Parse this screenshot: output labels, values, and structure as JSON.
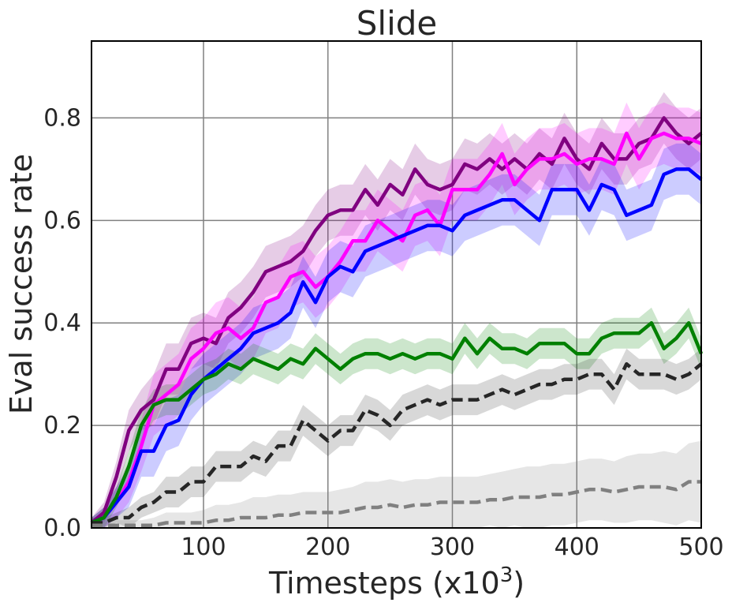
{
  "chart_data": {
    "type": "line",
    "title": "Slide",
    "xlabel": "Timesteps (x10",
    "xlabel_sup": "3",
    "xlabel_close": ")",
    "ylabel": "Eval success rate",
    "xlim": [
      10,
      500
    ],
    "ylim": [
      0,
      0.95
    ],
    "xticks": [
      100,
      200,
      300,
      400,
      500
    ],
    "xtick_labels": [
      "100",
      "200",
      "300",
      "400",
      "500"
    ],
    "yticks": [
      0.0,
      0.2,
      0.4,
      0.6,
      0.8
    ],
    "ytick_labels": [
      "0.0",
      "0.2",
      "0.4",
      "0.6",
      "0.8"
    ],
    "grid": true,
    "x": [
      10,
      20,
      30,
      40,
      50,
      60,
      70,
      80,
      90,
      100,
      110,
      120,
      130,
      140,
      150,
      160,
      170,
      180,
      190,
      200,
      210,
      220,
      230,
      240,
      250,
      260,
      270,
      280,
      290,
      300,
      310,
      320,
      330,
      340,
      350,
      360,
      370,
      380,
      390,
      400,
      410,
      420,
      430,
      440,
      450,
      460,
      470,
      480,
      490,
      500
    ],
    "series": [
      {
        "color": "#800080",
        "dash": "solid",
        "band_opacity": 0.2,
        "mean": [
          0.01,
          0.03,
          0.1,
          0.19,
          0.23,
          0.25,
          0.31,
          0.31,
          0.36,
          0.37,
          0.36,
          0.41,
          0.43,
          0.46,
          0.5,
          0.51,
          0.52,
          0.54,
          0.58,
          0.61,
          0.62,
          0.62,
          0.66,
          0.63,
          0.67,
          0.65,
          0.7,
          0.67,
          0.66,
          0.67,
          0.71,
          0.7,
          0.72,
          0.7,
          0.72,
          0.7,
          0.73,
          0.71,
          0.76,
          0.72,
          0.7,
          0.75,
          0.72,
          0.72,
          0.75,
          0.76,
          0.8,
          0.77,
          0.75,
          0.77
        ],
        "spread": [
          0.01,
          0.02,
          0.03,
          0.04,
          0.04,
          0.05,
          0.05,
          0.05,
          0.05,
          0.05,
          0.05,
          0.05,
          0.05,
          0.05,
          0.05,
          0.05,
          0.05,
          0.05,
          0.05,
          0.05,
          0.05,
          0.05,
          0.05,
          0.05,
          0.05,
          0.05,
          0.05,
          0.05,
          0.05,
          0.05,
          0.05,
          0.05,
          0.05,
          0.05,
          0.05,
          0.05,
          0.05,
          0.05,
          0.05,
          0.05,
          0.05,
          0.05,
          0.05,
          0.05,
          0.05,
          0.05,
          0.05,
          0.05,
          0.05,
          0.05
        ]
      },
      {
        "color": "#ff00ff",
        "dash": "solid",
        "band_opacity": 0.2,
        "mean": [
          0.01,
          0.02,
          0.05,
          0.09,
          0.16,
          0.24,
          0.26,
          0.28,
          0.33,
          0.35,
          0.38,
          0.39,
          0.37,
          0.39,
          0.44,
          0.45,
          0.49,
          0.5,
          0.47,
          0.49,
          0.52,
          0.56,
          0.56,
          0.6,
          0.58,
          0.56,
          0.61,
          0.62,
          0.59,
          0.66,
          0.66,
          0.66,
          0.69,
          0.73,
          0.67,
          0.7,
          0.72,
          0.72,
          0.73,
          0.71,
          0.72,
          0.72,
          0.71,
          0.77,
          0.72,
          0.76,
          0.77,
          0.76,
          0.76,
          0.75
        ],
        "spread": [
          0.01,
          0.02,
          0.03,
          0.04,
          0.05,
          0.06,
          0.06,
          0.06,
          0.06,
          0.06,
          0.06,
          0.06,
          0.06,
          0.06,
          0.06,
          0.06,
          0.06,
          0.06,
          0.06,
          0.06,
          0.06,
          0.06,
          0.06,
          0.06,
          0.06,
          0.06,
          0.06,
          0.06,
          0.06,
          0.06,
          0.06,
          0.06,
          0.06,
          0.06,
          0.06,
          0.06,
          0.06,
          0.06,
          0.06,
          0.06,
          0.06,
          0.06,
          0.06,
          0.06,
          0.06,
          0.06,
          0.06,
          0.06,
          0.06,
          0.06
        ]
      },
      {
        "color": "#0000ff",
        "dash": "solid",
        "band_opacity": 0.2,
        "mean": [
          0.01,
          0.02,
          0.05,
          0.08,
          0.15,
          0.15,
          0.2,
          0.21,
          0.26,
          0.29,
          0.31,
          0.33,
          0.35,
          0.38,
          0.39,
          0.4,
          0.42,
          0.48,
          0.44,
          0.49,
          0.51,
          0.5,
          0.54,
          0.55,
          0.56,
          0.57,
          0.58,
          0.59,
          0.59,
          0.58,
          0.61,
          0.62,
          0.63,
          0.64,
          0.64,
          0.62,
          0.6,
          0.66,
          0.66,
          0.66,
          0.62,
          0.67,
          0.66,
          0.61,
          0.62,
          0.63,
          0.69,
          0.7,
          0.7,
          0.68
        ],
        "spread": [
          0.01,
          0.02,
          0.03,
          0.04,
          0.05,
          0.05,
          0.05,
          0.05,
          0.05,
          0.05,
          0.05,
          0.05,
          0.05,
          0.05,
          0.05,
          0.05,
          0.05,
          0.05,
          0.05,
          0.05,
          0.05,
          0.05,
          0.05,
          0.05,
          0.05,
          0.05,
          0.05,
          0.05,
          0.05,
          0.05,
          0.05,
          0.05,
          0.05,
          0.05,
          0.05,
          0.05,
          0.05,
          0.05,
          0.05,
          0.05,
          0.05,
          0.05,
          0.05,
          0.05,
          0.05,
          0.05,
          0.05,
          0.05,
          0.05,
          0.05
        ]
      },
      {
        "color": "#008000",
        "dash": "solid",
        "band_opacity": 0.2,
        "mean": [
          0.01,
          0.02,
          0.06,
          0.12,
          0.2,
          0.24,
          0.25,
          0.25,
          0.27,
          0.29,
          0.3,
          0.32,
          0.31,
          0.33,
          0.32,
          0.31,
          0.33,
          0.32,
          0.35,
          0.33,
          0.31,
          0.33,
          0.34,
          0.34,
          0.33,
          0.34,
          0.33,
          0.34,
          0.34,
          0.33,
          0.37,
          0.34,
          0.37,
          0.35,
          0.35,
          0.34,
          0.36,
          0.36,
          0.36,
          0.34,
          0.34,
          0.37,
          0.38,
          0.38,
          0.38,
          0.4,
          0.35,
          0.37,
          0.4,
          0.34
        ],
        "spread": [
          0.01,
          0.02,
          0.02,
          0.03,
          0.03,
          0.03,
          0.03,
          0.03,
          0.03,
          0.03,
          0.03,
          0.03,
          0.03,
          0.03,
          0.03,
          0.03,
          0.03,
          0.03,
          0.03,
          0.03,
          0.03,
          0.03,
          0.03,
          0.03,
          0.03,
          0.03,
          0.03,
          0.03,
          0.03,
          0.03,
          0.03,
          0.03,
          0.03,
          0.03,
          0.03,
          0.03,
          0.03,
          0.03,
          0.03,
          0.03,
          0.03,
          0.03,
          0.03,
          0.03,
          0.03,
          0.03,
          0.03,
          0.03,
          0.03,
          0.03
        ]
      },
      {
        "color": "#262626",
        "dash": "dashed",
        "band_opacity": 0.18,
        "mean": [
          0.01,
          0.01,
          0.02,
          0.02,
          0.04,
          0.05,
          0.07,
          0.07,
          0.09,
          0.09,
          0.12,
          0.12,
          0.12,
          0.14,
          0.13,
          0.16,
          0.16,
          0.21,
          0.19,
          0.17,
          0.19,
          0.19,
          0.23,
          0.22,
          0.2,
          0.23,
          0.24,
          0.25,
          0.24,
          0.25,
          0.25,
          0.25,
          0.26,
          0.27,
          0.26,
          0.27,
          0.28,
          0.28,
          0.29,
          0.29,
          0.3,
          0.3,
          0.27,
          0.32,
          0.3,
          0.3,
          0.3,
          0.29,
          0.3,
          0.32
        ],
        "spread": [
          0.01,
          0.01,
          0.01,
          0.02,
          0.02,
          0.02,
          0.03,
          0.03,
          0.03,
          0.03,
          0.03,
          0.03,
          0.03,
          0.03,
          0.03,
          0.03,
          0.03,
          0.03,
          0.03,
          0.03,
          0.03,
          0.03,
          0.03,
          0.03,
          0.03,
          0.03,
          0.03,
          0.03,
          0.03,
          0.03,
          0.03,
          0.03,
          0.03,
          0.03,
          0.03,
          0.03,
          0.03,
          0.03,
          0.03,
          0.03,
          0.03,
          0.03,
          0.03,
          0.03,
          0.03,
          0.03,
          0.03,
          0.03,
          0.03,
          0.03
        ]
      },
      {
        "color": "#808080",
        "dash": "dashed",
        "band_opacity": 0.2,
        "mean": [
          0.005,
          0.005,
          0.005,
          0.005,
          0.005,
          0.005,
          0.01,
          0.01,
          0.01,
          0.01,
          0.015,
          0.015,
          0.02,
          0.02,
          0.02,
          0.025,
          0.025,
          0.03,
          0.03,
          0.03,
          0.03,
          0.035,
          0.04,
          0.04,
          0.045,
          0.04,
          0.045,
          0.045,
          0.05,
          0.05,
          0.05,
          0.05,
          0.055,
          0.055,
          0.06,
          0.06,
          0.06,
          0.065,
          0.065,
          0.07,
          0.075,
          0.075,
          0.07,
          0.075,
          0.08,
          0.08,
          0.08,
          0.075,
          0.09,
          0.09
        ],
        "spread": [
          0.005,
          0.005,
          0.01,
          0.01,
          0.01,
          0.015,
          0.02,
          0.02,
          0.02,
          0.025,
          0.03,
          0.03,
          0.03,
          0.04,
          0.04,
          0.04,
          0.04,
          0.04,
          0.04,
          0.04,
          0.045,
          0.045,
          0.05,
          0.05,
          0.05,
          0.05,
          0.05,
          0.05,
          0.05,
          0.05,
          0.05,
          0.05,
          0.05,
          0.055,
          0.055,
          0.06,
          0.06,
          0.06,
          0.06,
          0.06,
          0.06,
          0.06,
          0.06,
          0.065,
          0.065,
          0.065,
          0.07,
          0.07,
          0.075,
          0.08
        ]
      }
    ]
  }
}
